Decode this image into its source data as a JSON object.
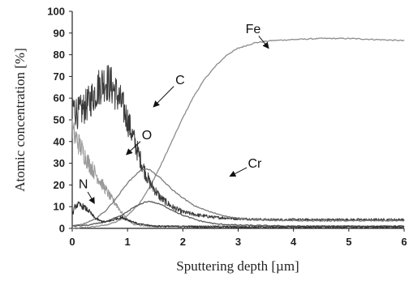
{
  "chart_data": {
    "type": "line",
    "xlabel": "Sputtering depth [µm]",
    "ylabel": "Atomic concentration [%]",
    "xlim": [
      0,
      6
    ],
    "ylim": [
      0,
      100
    ],
    "xticks": [
      0,
      1,
      2,
      3,
      4,
      5,
      6
    ],
    "yticks": [
      0,
      10,
      20,
      30,
      40,
      50,
      60,
      70,
      80,
      90,
      100
    ],
    "grid": false,
    "legend": "none",
    "series": [
      {
        "name": "Fe",
        "color": "#8c8c8c",
        "noisy": false,
        "x": [
          0,
          0.3,
          0.6,
          0.8,
          1.0,
          1.2,
          1.4,
          1.6,
          1.8,
          2.0,
          2.2,
          2.4,
          2.6,
          2.8,
          3.0,
          3.3,
          3.6,
          4.0,
          4.5,
          5.0,
          5.5,
          6.0
        ],
        "y": [
          0,
          0.5,
          1.5,
          3,
          6,
          11,
          19,
          29,
          40,
          51,
          61,
          69,
          75,
          80,
          83,
          85.5,
          86.5,
          87,
          87.5,
          87.5,
          87,
          86.5
        ]
      },
      {
        "name": "C",
        "color": "#3a3a3a",
        "noisy": true,
        "x": [
          0,
          0.1,
          0.2,
          0.3,
          0.4,
          0.5,
          0.6,
          0.7,
          0.8,
          0.9,
          1.0,
          1.1,
          1.2,
          1.3,
          1.4,
          1.6,
          1.8,
          2.0,
          2.3,
          2.6,
          3.0,
          3.5,
          4.0,
          5.0,
          6.0
        ],
        "y": [
          57,
          53,
          55,
          58,
          62,
          66,
          68,
          66,
          62,
          57,
          50,
          42,
          34,
          27,
          21,
          14,
          10,
          7.5,
          6,
          5,
          4.5,
          4,
          4,
          4,
          4
        ]
      },
      {
        "name": "O",
        "color": "#9a9a9a",
        "noisy": true,
        "x": [
          0,
          0.1,
          0.2,
          0.3,
          0.4,
          0.5,
          0.6,
          0.7,
          0.8,
          0.9,
          1.0,
          1.1,
          1.2,
          1.3,
          1.4,
          1.6,
          1.8,
          2.0,
          3.0,
          4.0,
          5.0,
          6.0
        ],
        "y": [
          45,
          40,
          35,
          30,
          26,
          22,
          18,
          14,
          11,
          7,
          4,
          2,
          1.5,
          1,
          1,
          1,
          1,
          1,
          1,
          1,
          1,
          1
        ]
      },
      {
        "name": "Cr",
        "color": "#7a7a7a",
        "noisy": false,
        "x": [
          0,
          0.2,
          0.4,
          0.6,
          0.8,
          1.0,
          1.2,
          1.3,
          1.4,
          1.6,
          1.8,
          2.0,
          2.2,
          2.5,
          2.8,
          3.0,
          3.5,
          4.0,
          5.0,
          6.0
        ],
        "y": [
          1,
          2,
          4,
          8,
          14,
          21,
          26,
          27.5,
          27,
          23,
          18,
          14,
          10.5,
          7.5,
          5.5,
          4.5,
          3.8,
          3.5,
          3.5,
          3.5
        ]
      },
      {
        "name": "",
        "color": "#5a5a5a",
        "noisy": false,
        "x": [
          0,
          0.3,
          0.6,
          0.9,
          1.1,
          1.3,
          1.4,
          1.6,
          1.8,
          2.0,
          2.3,
          2.6,
          3.0,
          4.0,
          5.0,
          6.0
        ],
        "y": [
          1,
          1.5,
          3,
          6,
          9.5,
          12,
          12.5,
          11,
          8.5,
          6,
          3.5,
          2,
          1.5,
          1,
          1,
          1
        ]
      },
      {
        "name": "N",
        "color": "#303030",
        "noisy": true,
        "x": [
          0,
          0.05,
          0.1,
          0.2,
          0.3,
          0.4,
          0.5,
          0.6,
          0.7,
          0.8,
          0.9,
          1.0,
          1.2,
          1.5,
          2.0,
          3.0,
          4.0,
          5.0,
          6.0
        ],
        "y": [
          6,
          10,
          11,
          10,
          8,
          5,
          3.5,
          3,
          3.5,
          4.5,
          5,
          4,
          2,
          1,
          0.8,
          0.6,
          0.6,
          0.6,
          0.6
        ]
      }
    ],
    "annotations": [
      {
        "text": "Fe",
        "label_at": [
          3.27,
          90
        ],
        "arrow_to": [
          3.55,
          83
        ]
      },
      {
        "text": "C",
        "label_at": [
          1.95,
          66.5
        ],
        "arrow_to": [
          1.47,
          56
        ]
      },
      {
        "text": "O",
        "label_at": [
          1.35,
          41
        ],
        "arrow_to": [
          0.98,
          34
        ]
      },
      {
        "text": "Cr",
        "label_at": [
          3.3,
          28
        ],
        "arrow_to": [
          2.85,
          24
        ]
      },
      {
        "text": "N",
        "label_at": [
          0.2,
          18.5
        ],
        "arrow_to": [
          0.4,
          11.5
        ]
      }
    ]
  }
}
